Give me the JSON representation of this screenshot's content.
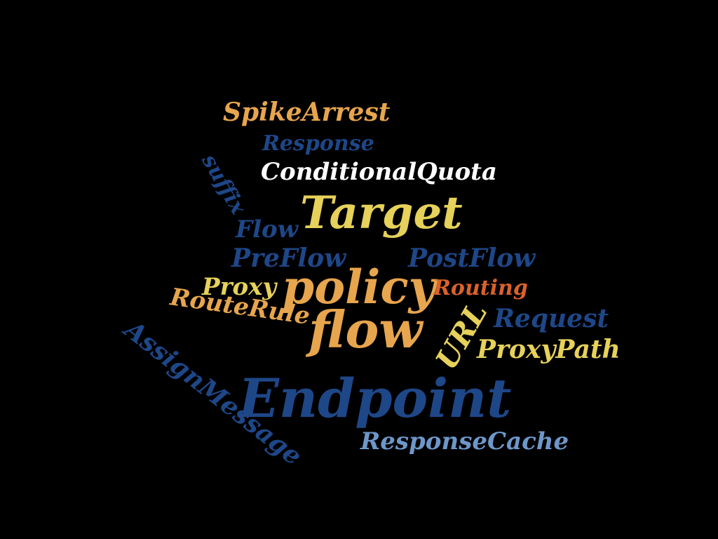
{
  "colors": {
    "background": "#000000",
    "orange": "#e7a54e",
    "yellow": "#e6d15a",
    "dark_blue": "#1e4788",
    "light_blue": "#6e97c9",
    "white": "#ffffff",
    "rust": "#d9622b"
  },
  "words": {
    "spikearrest": "SpikeArrest",
    "response": "Response",
    "suffix": "suffix",
    "conditional_quota": "ConditionalQuota",
    "target": "Target",
    "flow_small": "Flow",
    "preflow": "PreFlow",
    "postflow": "PostFlow",
    "proxy": "Proxy",
    "policy": "policy",
    "routing": "Routing",
    "routerule": "RouteRule",
    "flow_big": "flow",
    "url": "URL",
    "request": "Request",
    "proxypath": "ProxyPath",
    "assignmessage": "AssignMessage",
    "endpoint": "Endpoint",
    "responsecache": "ResponseCache"
  }
}
